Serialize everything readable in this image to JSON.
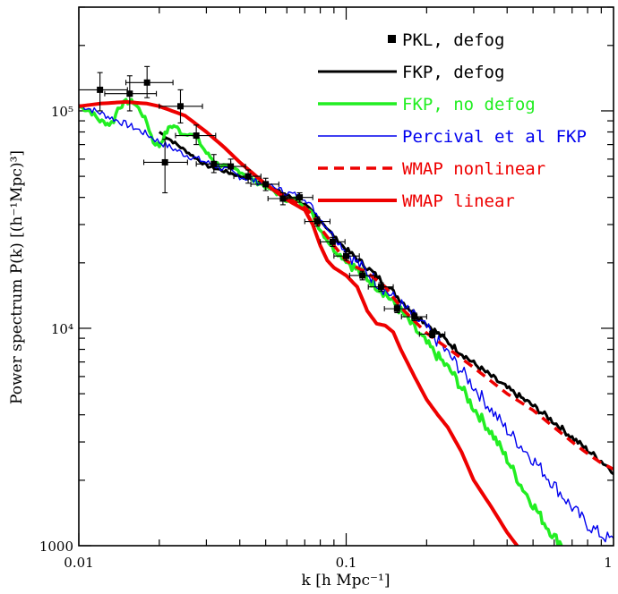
{
  "chart_data": {
    "type": "line",
    "xscale": "log",
    "yscale": "log",
    "xlim": [
      0.01,
      1
    ],
    "ylim": [
      1000,
      300000
    ],
    "xlabel": "k [h Mpc⁻¹]",
    "ylabel": "Power spectrum P(k) [(h⁻¹Mpc)³]",
    "x_tick_labels": [
      {
        "value": 0.01,
        "label": "0.01"
      },
      {
        "value": 0.1,
        "label": "0.1"
      },
      {
        "value": 1,
        "label": "1"
      }
    ],
    "y_tick_labels": [
      {
        "value": 1000,
        "label": "1000"
      },
      {
        "value": 10000,
        "label": "10⁴"
      },
      {
        "value": 100000,
        "label": "10⁵"
      }
    ],
    "legend_position": "top-right",
    "grid": false,
    "series": [
      {
        "name": "PKL, defog",
        "style": "points",
        "color": "#000000",
        "points": [
          {
            "x": 0.012,
            "y": 125000,
            "xlo": 0.0095,
            "xhi": 0.0152,
            "ylo": 100000,
            "yhi": 150000
          },
          {
            "x": 0.0155,
            "y": 120000,
            "xlo": 0.0125,
            "xhi": 0.0195,
            "ylo": 100000,
            "yhi": 145000
          },
          {
            "x": 0.018,
            "y": 135000,
            "xlo": 0.015,
            "xhi": 0.0225,
            "ylo": 115000,
            "yhi": 160000
          },
          {
            "x": 0.021,
            "y": 58000,
            "xlo": 0.0175,
            "xhi": 0.0255,
            "ylo": 42000,
            "yhi": 74000
          },
          {
            "x": 0.024,
            "y": 105000,
            "xlo": 0.02,
            "xhi": 0.029,
            "ylo": 88000,
            "yhi": 125000
          },
          {
            "x": 0.0275,
            "y": 77000,
            "xlo": 0.023,
            "xhi": 0.0325,
            "ylo": 70000,
            "yhi": 86000
          },
          {
            "x": 0.032,
            "y": 57000,
            "xlo": 0.0275,
            "xhi": 0.037,
            "ylo": 52000,
            "yhi": 63000
          },
          {
            "x": 0.037,
            "y": 55500,
            "xlo": 0.032,
            "xhi": 0.042,
            "ylo": 51000,
            "yhi": 60000
          },
          {
            "x": 0.043,
            "y": 50000,
            "xlo": 0.038,
            "xhi": 0.048,
            "ylo": 46500,
            "yhi": 53500
          },
          {
            "x": 0.05,
            "y": 46000,
            "xlo": 0.044,
            "xhi": 0.056,
            "ylo": 43000,
            "yhi": 49000
          },
          {
            "x": 0.058,
            "y": 39500,
            "xlo": 0.051,
            "xhi": 0.065,
            "ylo": 37000,
            "yhi": 42000
          },
          {
            "x": 0.067,
            "y": 40000,
            "xlo": 0.06,
            "xhi": 0.075,
            "ylo": 38000,
            "yhi": 42000
          },
          {
            "x": 0.078,
            "y": 31000,
            "xlo": 0.07,
            "xhi": 0.087,
            "ylo": 29500,
            "yhi": 32500
          },
          {
            "x": 0.089,
            "y": 25000,
            "xlo": 0.08,
            "xhi": 0.099,
            "ylo": 23800,
            "yhi": 26200
          },
          {
            "x": 0.1,
            "y": 21500,
            "xlo": 0.09,
            "xhi": 0.112,
            "ylo": 20500,
            "yhi": 22500
          },
          {
            "x": 0.115,
            "y": 17500,
            "xlo": 0.103,
            "xhi": 0.128,
            "ylo": 16700,
            "yhi": 18300
          },
          {
            "x": 0.135,
            "y": 15500,
            "xlo": 0.121,
            "xhi": 0.15,
            "ylo": 14800,
            "yhi": 16200
          },
          {
            "x": 0.155,
            "y": 12300,
            "xlo": 0.139,
            "xhi": 0.172,
            "ylo": 11800,
            "yhi": 12800
          },
          {
            "x": 0.18,
            "y": 11300,
            "xlo": 0.161,
            "xhi": 0.2,
            "ylo": 10850,
            "yhi": 11750
          },
          {
            "x": 0.21,
            "y": 9400,
            "xlo": 0.188,
            "xhi": 0.234,
            "ylo": 9050,
            "yhi": 9750
          }
        ]
      },
      {
        "name": "FKP, defog",
        "style": "line",
        "color": "#000000",
        "width": 3,
        "jitter": 0.018,
        "x": [
          0.02,
          0.03,
          0.045,
          0.06,
          0.07,
          0.08,
          0.09,
          0.1,
          0.12,
          0.14,
          0.17,
          0.2,
          0.25,
          0.3,
          0.4,
          0.5,
          0.6,
          0.7,
          0.8,
          0.9,
          1.0
        ],
        "y": [
          80000,
          56000,
          48000,
          41000,
          37000,
          31500,
          26500,
          23000,
          19000,
          16000,
          12500,
          10500,
          8300,
          6900,
          5300,
          4400,
          3700,
          3150,
          2750,
          2450,
          2200
        ]
      },
      {
        "name": "FKP, no defog",
        "style": "line",
        "color": "#22ee22",
        "width": 3.5,
        "jitter": 0.03,
        "x": [
          0.01,
          0.011,
          0.012,
          0.013,
          0.0135,
          0.014,
          0.015,
          0.016,
          0.017,
          0.018,
          0.019,
          0.02,
          0.021,
          0.022,
          0.023,
          0.024,
          0.025,
          0.026,
          0.028,
          0.03,
          0.033,
          0.036,
          0.04,
          0.045,
          0.05,
          0.055,
          0.06,
          0.065,
          0.07,
          0.075,
          0.08,
          0.09,
          0.1,
          0.12,
          0.14,
          0.16,
          0.18,
          0.2,
          0.25,
          0.3,
          0.35,
          0.4,
          0.45,
          0.5,
          0.55,
          0.6,
          0.65
        ],
        "y": [
          105000,
          100000,
          90000,
          87000,
          90000,
          103000,
          110000,
          110000,
          100000,
          88000,
          72000,
          69000,
          78000,
          85000,
          85000,
          80000,
          78000,
          80000,
          73000,
          64000,
          57000,
          55000,
          53000,
          48000,
          45000,
          42000,
          39000,
          39000,
          37000,
          33000,
          28500,
          23000,
          20500,
          17000,
          14500,
          12000,
          10000,
          8500,
          6200,
          4300,
          3300,
          2500,
          1900,
          1550,
          1280,
          1100,
          1000
        ]
      },
      {
        "name": "Percival et al FKP",
        "style": "line",
        "color": "#0000ee",
        "width": 1.4,
        "jitter": 0.04,
        "x": [
          0.01,
          0.012,
          0.014,
          0.016,
          0.018,
          0.02,
          0.025,
          0.03,
          0.035,
          0.04,
          0.05,
          0.06,
          0.07,
          0.08,
          0.09,
          0.1,
          0.12,
          0.14,
          0.17,
          0.2,
          0.25,
          0.3,
          0.35,
          0.4,
          0.5,
          0.6,
          0.7,
          0.8,
          0.9,
          1.0
        ],
        "y": [
          107000,
          98000,
          90000,
          84000,
          78000,
          72000,
          63000,
          58000,
          54000,
          50000,
          46000,
          42000,
          40000,
          32000,
          26500,
          22500,
          18000,
          15000,
          12000,
          10000,
          7200,
          5400,
          4200,
          3400,
          2500,
          1900,
          1500,
          1250,
          1120,
          1050
        ]
      },
      {
        "name": "WMAP nonlinear",
        "style": "line",
        "dash": "11,7",
        "color": "#ee0000",
        "width": 3.5,
        "x": [
          0.01,
          0.012,
          0.015,
          0.018,
          0.02,
          0.025,
          0.03,
          0.035,
          0.04,
          0.05,
          0.06,
          0.07,
          0.075,
          0.08,
          0.09,
          0.1,
          0.11,
          0.12,
          0.14,
          0.16,
          0.18,
          0.2,
          0.25,
          0.3,
          0.4,
          0.5,
          0.6,
          0.7,
          0.8,
          0.9,
          1.0
        ],
        "y": [
          105000,
          108000,
          110000,
          108000,
          105000,
          95000,
          80000,
          68000,
          58000,
          46000,
          40000,
          36000,
          33000,
          29000,
          24000,
          20500,
          19000,
          18000,
          15500,
          12500,
          10800,
          9500,
          7800,
          6600,
          5000,
          4200,
          3500,
          3000,
          2650,
          2400,
          2250
        ]
      },
      {
        "name": "WMAP linear",
        "style": "line",
        "color": "#ee0000",
        "width": 4,
        "x": [
          0.01,
          0.012,
          0.015,
          0.018,
          0.02,
          0.025,
          0.03,
          0.035,
          0.04,
          0.05,
          0.06,
          0.07,
          0.075,
          0.08,
          0.085,
          0.09,
          0.1,
          0.11,
          0.12,
          0.13,
          0.14,
          0.15,
          0.16,
          0.18,
          0.2,
          0.22,
          0.24,
          0.27,
          0.3,
          0.35,
          0.4,
          0.45
        ],
        "y": [
          105000,
          108000,
          110000,
          108000,
          105000,
          95000,
          80000,
          68000,
          58000,
          46000,
          39000,
          35000,
          30000,
          24000,
          20500,
          19000,
          17500,
          15500,
          12000,
          10500,
          10300,
          9600,
          8000,
          6000,
          4700,
          4000,
          3500,
          2700,
          2000,
          1500,
          1150,
          950
        ]
      }
    ]
  }
}
